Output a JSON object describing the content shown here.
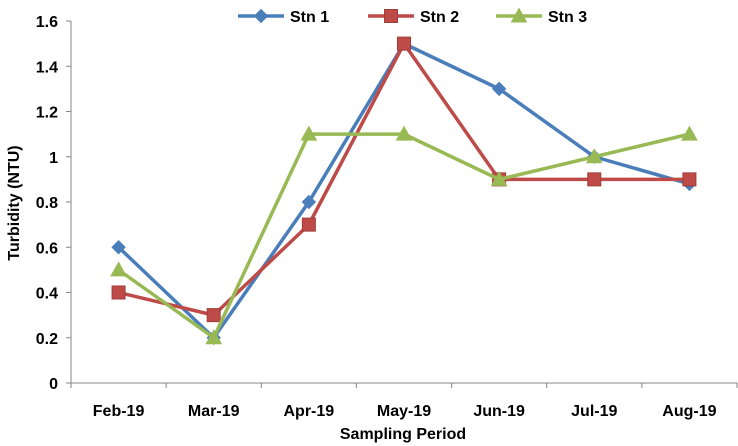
{
  "chart_data": {
    "type": "line",
    "title": "",
    "xlabel": "Sampling Period",
    "ylabel": "Turbidity (NTU)",
    "categories": [
      "Feb-19",
      "Mar-19",
      "Apr-19",
      "May-19",
      "Jun-19",
      "Jul-19",
      "Aug-19"
    ],
    "ylim": [
      0,
      1.6
    ],
    "yticks": [
      "0",
      "0.2",
      "0.4",
      "0.6",
      "0.8",
      "1",
      "1.2",
      "1.4",
      "1.6"
    ],
    "grid": false,
    "legend_position": "top-center",
    "series": [
      {
        "name": "Stn 1",
        "color": "#4a7ebb",
        "marker": "diamond",
        "values": [
          0.6,
          0.2,
          0.8,
          1.5,
          1.3,
          1.0,
          0.88
        ]
      },
      {
        "name": "Stn 2",
        "color": "#be4b48",
        "marker": "square",
        "values": [
          0.4,
          0.3,
          0.7,
          1.5,
          0.9,
          0.9,
          0.9
        ]
      },
      {
        "name": "Stn 3",
        "color": "#98b954",
        "marker": "triangle",
        "values": [
          0.5,
          0.2,
          1.1,
          1.1,
          0.9,
          1.0,
          1.1
        ]
      }
    ]
  }
}
